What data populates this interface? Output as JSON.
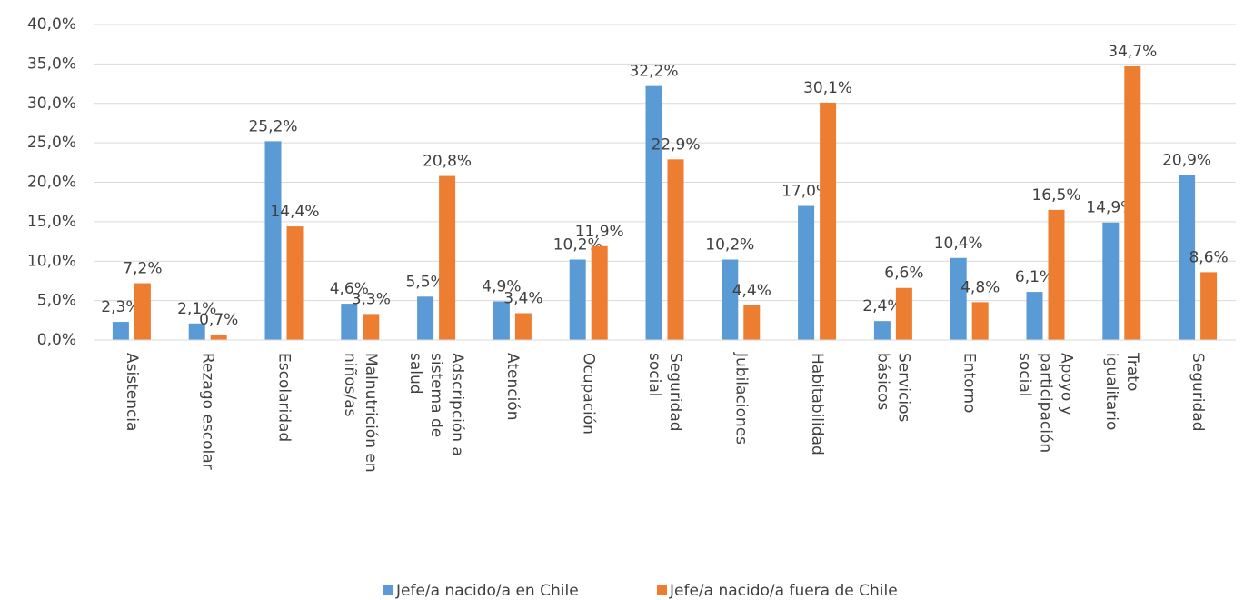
{
  "chart_data": {
    "type": "bar",
    "categories": [
      "Asistencia",
      "Rezago escolar",
      "Escolaridad",
      "Malnutrición en niños/as",
      "Adscripción a sistema de salud",
      "Atención",
      "Ocupación",
      "Seguridad social",
      "Jubilaciones",
      "Habitabilidad",
      "Servicios básicos",
      "Entorno",
      "Apoyo y participación social",
      "Trato igualitario",
      "Seguridad"
    ],
    "series": [
      {
        "name": "Jefe/a nacido/a en Chile",
        "color": "#5b9bd5",
        "values": [
          2.3,
          2.1,
          25.2,
          4.6,
          5.5,
          4.9,
          10.2,
          32.2,
          10.2,
          17.0,
          2.4,
          10.4,
          6.1,
          14.9,
          20.9
        ],
        "value_labels": [
          "2,3%",
          "2,1%",
          "25,2%",
          "4,6%",
          "5,5%",
          "4,9%",
          "10,2%",
          "32,2%",
          "10,2%",
          "17,0%",
          "2,4%",
          "10,4%",
          "6,1%",
          "14,9%",
          "20,9%"
        ]
      },
      {
        "name": "Jefe/a nacido/a fuera de Chile",
        "color": "#ed7d31",
        "values": [
          7.2,
          0.7,
          14.4,
          3.3,
          20.8,
          3.4,
          11.9,
          22.9,
          4.4,
          30.1,
          6.6,
          4.8,
          16.5,
          34.7,
          8.6
        ],
        "value_labels": [
          "7,2%",
          "0,7%",
          "14,4%",
          "3,3%",
          "20,8%",
          "3,4%",
          "11,9%",
          "22,9%",
          "4,4%",
          "30,1%",
          "6,6%",
          "4,8%",
          "16,5%",
          "34,7%",
          "8,6%"
        ]
      }
    ],
    "ylim": [
      0,
      40
    ],
    "yticks": [
      {
        "value": 0,
        "label": "0,0%"
      },
      {
        "value": 5,
        "label": "5,0%"
      },
      {
        "value": 10,
        "label": "10,0%"
      },
      {
        "value": 15,
        "label": "15,0%"
      },
      {
        "value": 20,
        "label": "20,0%"
      },
      {
        "value": 25,
        "label": "25,0%"
      },
      {
        "value": 30,
        "label": "30,0%"
      },
      {
        "value": 35,
        "label": "35,0%"
      },
      {
        "value": 40,
        "label": "40,0%"
      }
    ],
    "grid": true,
    "legend": "bottom"
  }
}
